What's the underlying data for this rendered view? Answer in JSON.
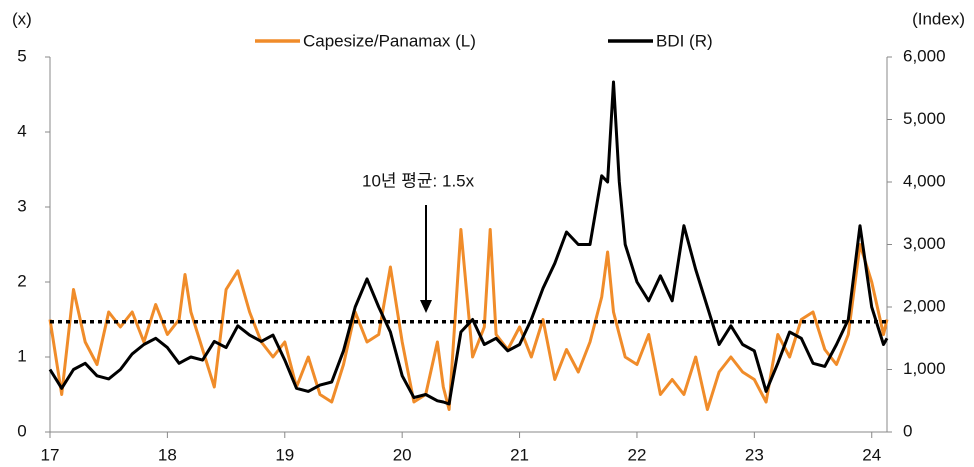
{
  "chart_data": {
    "type": "line",
    "y_label": "(x)",
    "y2_label": "(Index)",
    "x": [
      17.0,
      17.1,
      17.2,
      17.3,
      17.4,
      17.5,
      17.6,
      17.7,
      17.8,
      17.9,
      18.0,
      18.1,
      18.15,
      18.2,
      18.3,
      18.4,
      18.5,
      18.6,
      18.7,
      18.8,
      18.9,
      19.0,
      19.1,
      19.2,
      19.3,
      19.4,
      19.5,
      19.6,
      19.7,
      19.8,
      19.9,
      20.0,
      20.1,
      20.2,
      20.3,
      20.35,
      20.4,
      20.5,
      20.6,
      20.7,
      20.75,
      20.8,
      20.9,
      21.0,
      21.1,
      21.2,
      21.3,
      21.4,
      21.5,
      21.6,
      21.7,
      21.75,
      21.8,
      21.85,
      21.9,
      22.0,
      22.1,
      22.2,
      22.3,
      22.4,
      22.5,
      22.6,
      22.7,
      22.8,
      22.9,
      23.0,
      23.1,
      23.2,
      23.3,
      23.4,
      23.5,
      23.6,
      23.7,
      23.8,
      23.9,
      24.0,
      24.1,
      24.13
    ],
    "series": [
      {
        "name": "Capesize/Panamax (L)",
        "color": "#f08c2a",
        "axis": "y",
        "values": [
          1.5,
          0.5,
          1.9,
          1.2,
          0.9,
          1.6,
          1.4,
          1.6,
          1.2,
          1.7,
          1.3,
          1.5,
          2.1,
          1.6,
          1.1,
          0.6,
          1.9,
          2.15,
          1.6,
          1.2,
          1.0,
          1.2,
          0.6,
          1.0,
          0.5,
          0.4,
          0.9,
          1.6,
          1.2,
          1.3,
          2.2,
          1.2,
          0.4,
          0.5,
          1.2,
          0.6,
          0.3,
          2.7,
          1.0,
          1.4,
          2.7,
          1.3,
          1.1,
          1.4,
          1.0,
          1.5,
          0.7,
          1.1,
          0.8,
          1.2,
          1.8,
          2.4,
          1.6,
          1.3,
          1.0,
          0.9,
          1.3,
          0.5,
          0.7,
          0.5,
          1.0,
          0.3,
          0.8,
          1.0,
          0.8,
          0.7,
          0.4,
          1.3,
          1.0,
          1.5,
          1.6,
          1.1,
          0.9,
          1.3,
          2.5,
          2.0,
          1.3,
          1.5
        ]
      },
      {
        "name": "BDI (R)",
        "color": "#000000",
        "axis": "y2",
        "values": [
          1000,
          700,
          1000,
          1100,
          900,
          850,
          1000,
          1250,
          1400,
          1500,
          1350,
          1100,
          1150,
          1200,
          1150,
          1450,
          1350,
          1700,
          1550,
          1450,
          1550,
          1150,
          700,
          650,
          750,
          800,
          1300,
          2000,
          2450,
          2000,
          1600,
          900,
          550,
          600,
          500,
          480,
          450,
          1600,
          1800,
          1400,
          1450,
          1500,
          1300,
          1400,
          1800,
          2300,
          2700,
          3200,
          3000,
          3000,
          4100,
          4000,
          5600,
          4000,
          3000,
          2400,
          2100,
          2500,
          2100,
          3300,
          2600,
          2000,
          1400,
          1700,
          1400,
          1300,
          650,
          1100,
          1600,
          1500,
          1100,
          1050,
          1400,
          1800,
          3300,
          2000,
          1400,
          1500
        ]
      }
    ],
    "average": 1.47,
    "annotation": "10년 평균: 1.5x",
    "xlim": [
      17,
      24.13
    ],
    "xticks": [
      17,
      18,
      19,
      20,
      21,
      22,
      23,
      24
    ],
    "ylim": [
      0,
      5
    ],
    "yticks": [
      0,
      1,
      2,
      3,
      4,
      5
    ],
    "y2lim": [
      0,
      6000
    ],
    "y2ticks": [
      0,
      {
        "value": 1000,
        "label": "1,000"
      },
      {
        "value": 2000,
        "label": "2,000"
      },
      {
        "value": 3000,
        "label": "3,000"
      },
      {
        "value": 4000,
        "label": "4,000"
      },
      {
        "value": 5000,
        "label": "5,000"
      },
      {
        "value": 6000,
        "label": "6,000"
      }
    ],
    "legend": "top"
  }
}
